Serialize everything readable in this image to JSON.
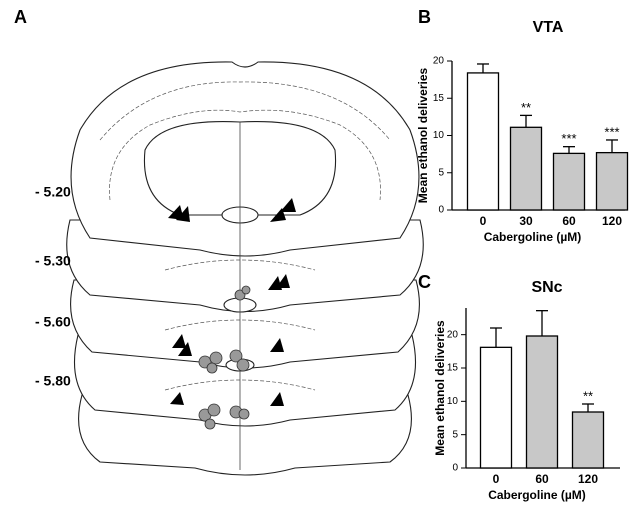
{
  "panel_a": {
    "label": "A",
    "levels": [
      "- 5.20",
      "- 5.30",
      "- 5.60",
      "- 5.80"
    ]
  },
  "chart_data": [
    {
      "type": "bar",
      "panel_label": "B",
      "title": "VTA",
      "y_label": "Mean ethanol deliveries",
      "x_label": "Cabergoline (µM)",
      "categories": [
        "0",
        "30",
        "60",
        "120"
      ],
      "values": [
        18.4,
        11.1,
        7.6,
        7.7
      ],
      "errors": [
        1.2,
        1.6,
        0.9,
        1.7
      ],
      "annotations": [
        null,
        "**",
        "***",
        "***"
      ],
      "colors": [
        "#ffffff",
        "#c8c8c8",
        "#c8c8c8",
        "#c8c8c8"
      ],
      "ylim": [
        0,
        20
      ],
      "yticks": [
        0,
        5,
        10,
        15,
        20
      ]
    },
    {
      "type": "bar",
      "panel_label": "C",
      "title": "SNc",
      "y_label": "Mean ethanol deliveries",
      "x_label": "Cabergoline (µM)",
      "categories": [
        "0",
        "60",
        "120"
      ],
      "values": [
        18.1,
        19.8,
        8.4
      ],
      "errors": [
        2.9,
        3.8,
        1.2
      ],
      "annotations": [
        null,
        null,
        "**"
      ],
      "colors": [
        "#ffffff",
        "#c8c8c8",
        "#c8c8c8"
      ],
      "ylim": [
        0,
        24
      ],
      "yticks": [
        0,
        5,
        10,
        15,
        20
      ]
    }
  ]
}
